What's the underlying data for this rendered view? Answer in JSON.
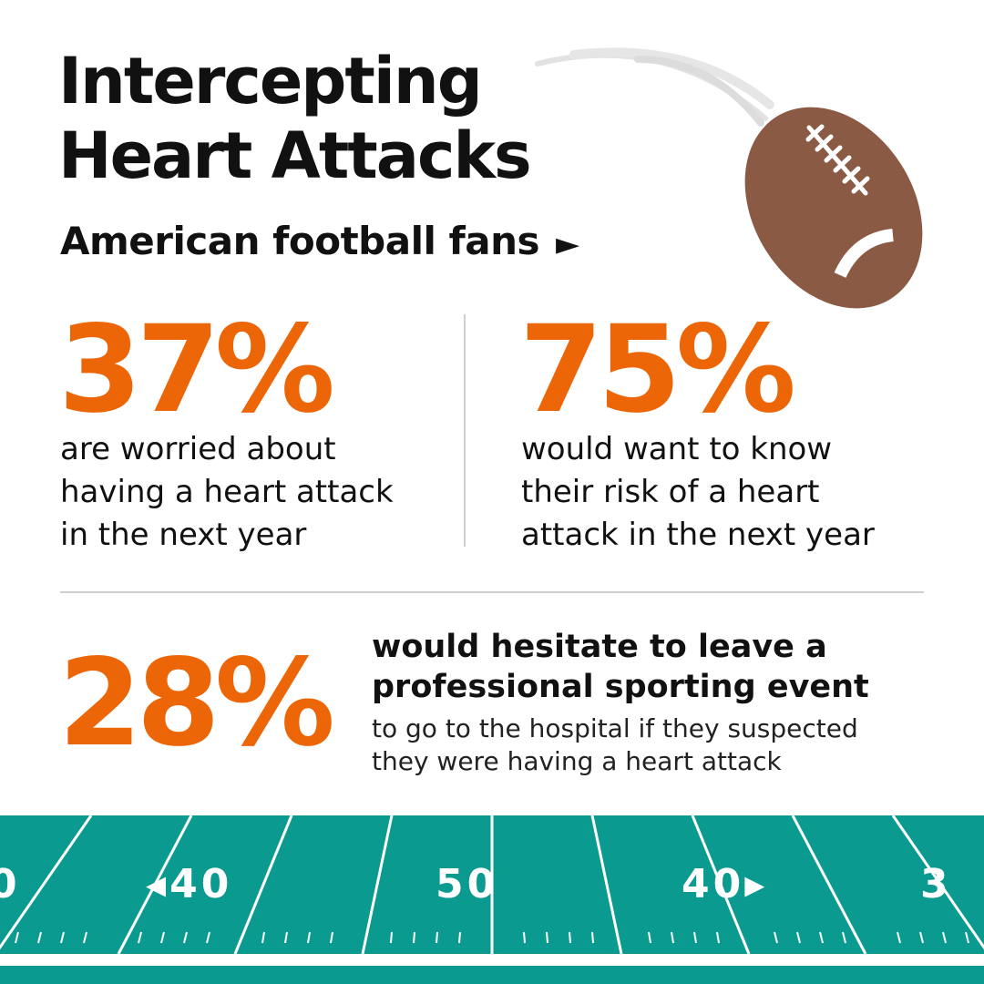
{
  "title": {
    "line1": "Intercepting",
    "line2": "Heart Attacks"
  },
  "subtitle": {
    "text": "American football fans",
    "arrow": "►"
  },
  "stats": [
    {
      "value": "37%",
      "lines": [
        "are worried about",
        "having a heart attack",
        "in the next year"
      ]
    },
    {
      "value": "75%",
      "lines": [
        "would want to know",
        "their risk of a heart",
        "attack in the next year"
      ]
    },
    {
      "value": "28%",
      "bold_lines": [
        "would hesitate to leave a",
        "professional sporting event"
      ],
      "light_lines": [
        "to go to the hospital if they suspected",
        "they were having a heart attack"
      ]
    }
  ],
  "field": {
    "yard_labels": [
      "0",
      "◂40",
      "50",
      "40▸",
      "3"
    ]
  },
  "colors": {
    "accent": "#ec6608",
    "field": "#0a9a90",
    "football": "#8a5a44",
    "text": "#111111"
  },
  "icons": {
    "football": "football-icon"
  }
}
